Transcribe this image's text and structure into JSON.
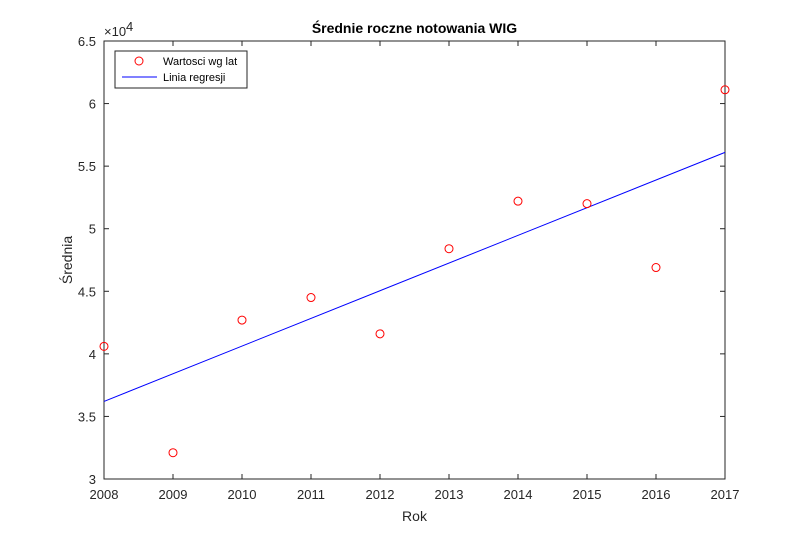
{
  "chart_data": {
    "type": "scatter",
    "title": "Średnie roczne notowania WIG",
    "xlabel": "Rok",
    "ylabel": "Średnia",
    "xlim": [
      2008,
      2017
    ],
    "ylim": [
      3.0,
      6.5
    ],
    "xticks": [
      "2008",
      "2009",
      "2010",
      "2011",
      "2012",
      "2013",
      "2014",
      "2015",
      "2016",
      "2017"
    ],
    "yticks": [
      "3",
      "3.5",
      "4",
      "4.5",
      "5",
      "5.5",
      "6",
      "6.5"
    ],
    "exponent_base": "×10",
    "exponent_power": "4",
    "grid": false,
    "legend_position": "top-left",
    "series": [
      {
        "name": "Wartosci wg lat",
        "kind": "markers",
        "marker": "circle",
        "color": "#ff0000",
        "x": [
          2008,
          2009,
          2010,
          2011,
          2012,
          2013,
          2014,
          2015,
          2016,
          2017
        ],
        "y": [
          4.06,
          3.21,
          4.27,
          4.45,
          4.16,
          4.84,
          5.22,
          5.2,
          4.69,
          6.11
        ]
      },
      {
        "name": "Linia regresji",
        "kind": "line",
        "color": "#0000ff",
        "x": [
          2008,
          2017
        ],
        "y": [
          3.62,
          5.61
        ]
      }
    ]
  }
}
